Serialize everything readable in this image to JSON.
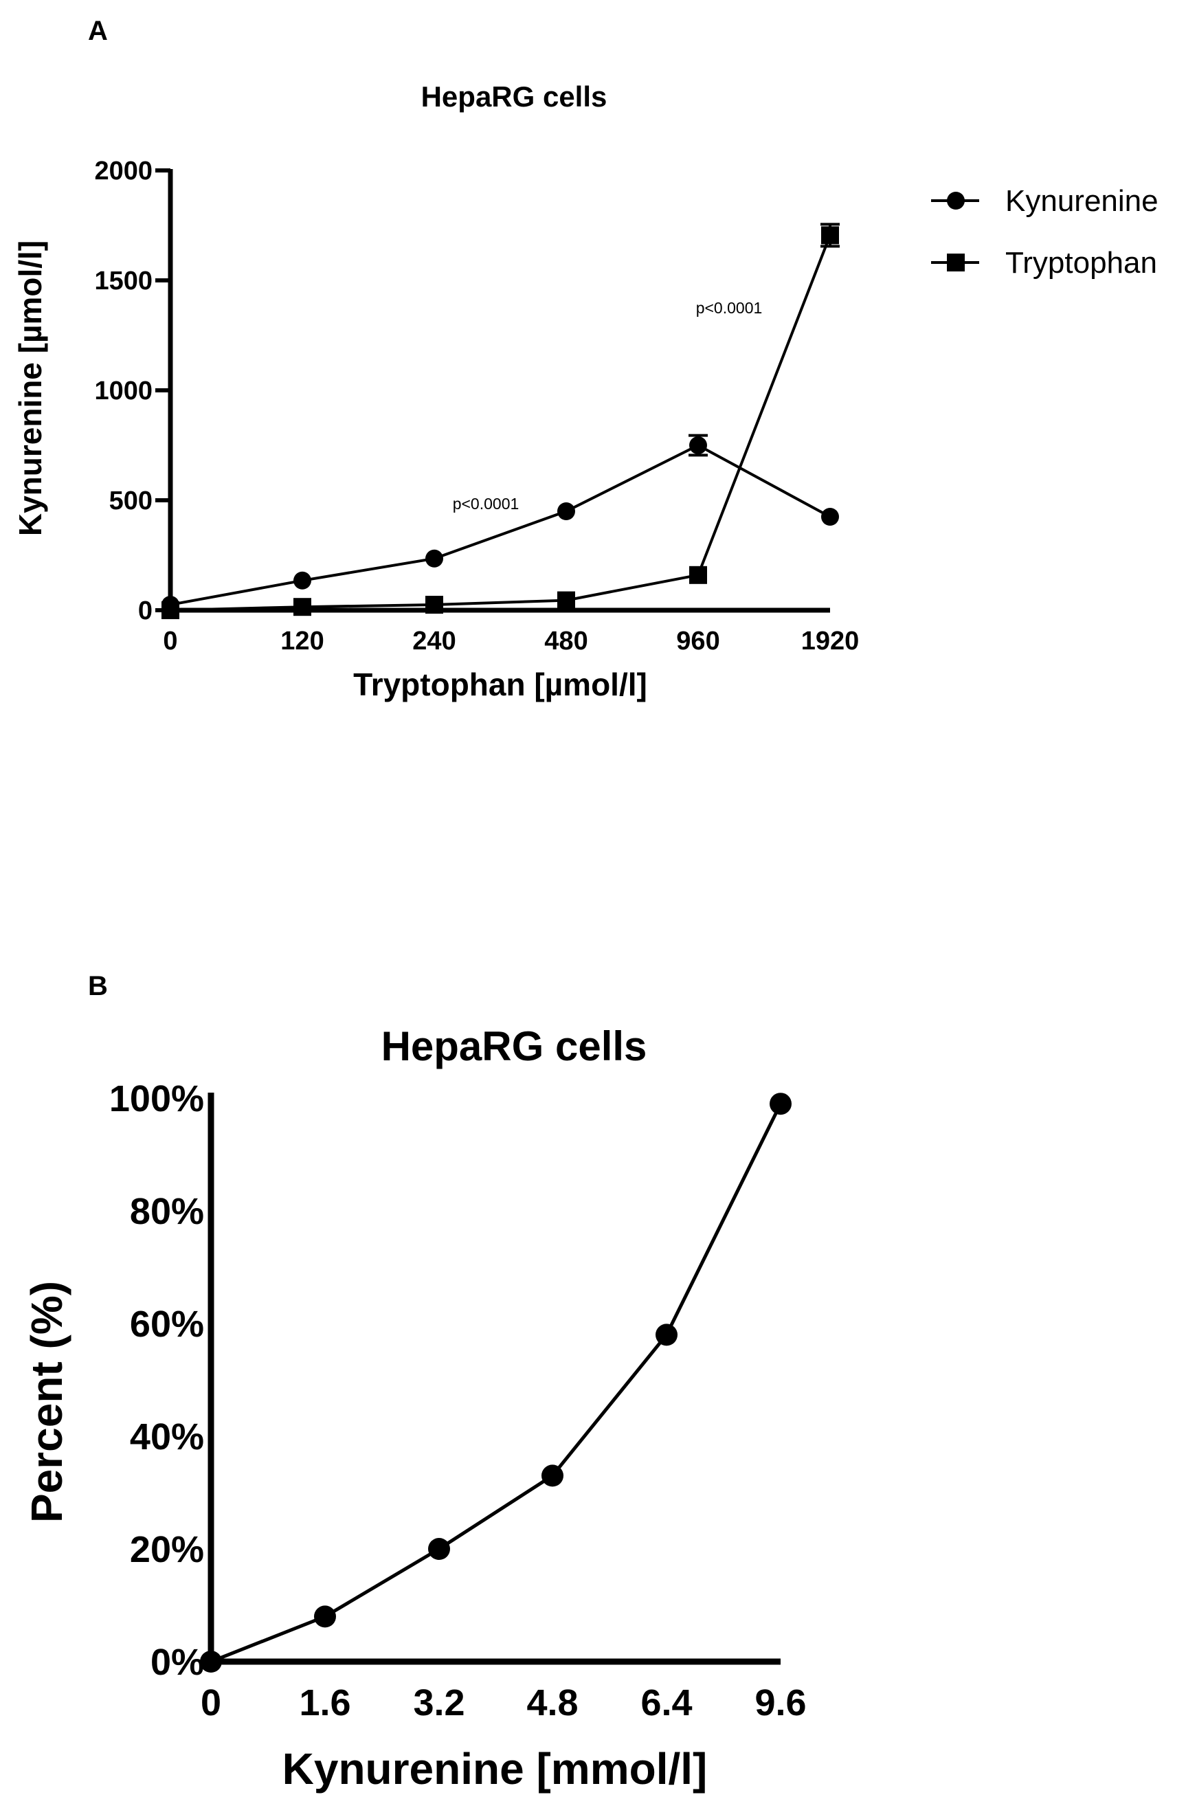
{
  "chart_data": [
    {
      "panel": "A",
      "type": "line",
      "title": "HepaRG cells",
      "xlabel": "Tryptophan [µmol/l]",
      "ylabel": "Kynurenine [µmol/l]",
      "categories": [
        "0",
        "120",
        "240",
        "480",
        "960",
        "1920"
      ],
      "ylim": [
        0,
        2000
      ],
      "yticks": [
        "0",
        "500",
        "1000",
        "1500",
        "2000"
      ],
      "series": [
        {
          "name": "Kynurenine",
          "marker": "circle",
          "values": [
            25,
            135,
            235,
            450,
            750,
            425
          ],
          "errors": [
            0,
            0,
            0,
            0,
            45,
            0
          ]
        },
        {
          "name": "Tryptophan",
          "marker": "square",
          "values": [
            0,
            15,
            25,
            45,
            160,
            1705
          ],
          "errors": [
            0,
            0,
            0,
            0,
            0,
            50
          ]
        }
      ],
      "annotations": [
        {
          "text": "p<0.0001",
          "category": "240",
          "y": 460
        },
        {
          "text": "p<0.0001",
          "category": "960",
          "y": 1350
        }
      ],
      "legend": "top-right"
    },
    {
      "panel": "B",
      "type": "line",
      "title": "HepaRG cells",
      "xlabel": "Kynurenine [mmol/l]",
      "ylabel": "Percent (%)",
      "categories": [
        "0",
        "1.6",
        "3.2",
        "4.8",
        "6.4",
        "9.6"
      ],
      "ylim": [
        0,
        100
      ],
      "yticks": [
        "0%",
        "20%",
        "40%",
        "60%",
        "80%",
        "100%"
      ],
      "series": [
        {
          "name": "Percent",
          "marker": "circle",
          "values": [
            0,
            8,
            20,
            33,
            58,
            99
          ]
        }
      ]
    }
  ]
}
